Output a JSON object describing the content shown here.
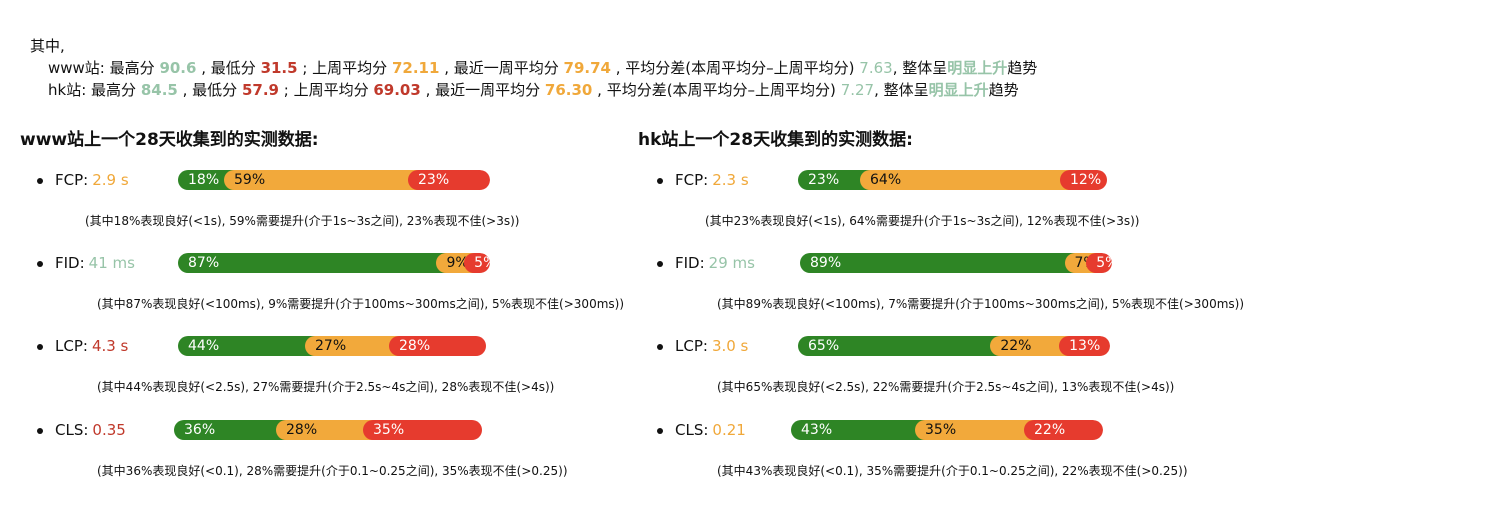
{
  "summary": {
    "intro": "其中,",
    "www": {
      "site": "www站:",
      "max_label": "最高分",
      "max": "90.6",
      "min_label": ", 最低分",
      "min": "31.5",
      "last_label": "; 上周平均分",
      "last": "72.11",
      "recent_label": ", 最近一周平均分",
      "recent": "79.74",
      "diff_label": ", 平均分差(本周平均分–上周平均分)",
      "diff": "7.63",
      "trend_pre": ", 整体呈",
      "trend": "明显上升",
      "trend_post": "趋势"
    },
    "hk": {
      "site": "hk站:",
      "max_label": "最高分",
      "max": "84.5",
      "min_label": ", 最低分",
      "min": "57.9",
      "last_label": "; 上周平均分",
      "last": "69.03",
      "recent_label": ", 最近一周平均分",
      "recent": "76.30",
      "diff_label": ", 平均分差(本周平均分–上周平均分)",
      "diff": "7.27",
      "trend_pre": ", 整体呈",
      "trend": "明显上升",
      "trend_post": "趋势"
    }
  },
  "colors": {
    "good": "#2e8525",
    "mid": "#f2a93b",
    "bad": "#e63b2e",
    "good_text": "#97c4a8",
    "mid_text": "#f0a83a",
    "bad_text": "#c0392b"
  },
  "www": {
    "title": "www站上一个28天收集到的实测数据:",
    "metrics": [
      {
        "name": "FCP:",
        "value": "2.9 s",
        "rating": "mid",
        "good": "18%",
        "mid": "59%",
        "bad": "23%",
        "good_frac": 0.18,
        "mid_frac": 0.59,
        "bad_frac": 0.23,
        "desc": "(其中18%表现良好(<1s), 59%需要提升(介于1s~3s之间), 23%表现不佳(>3s))"
      },
      {
        "name": "FID:",
        "value": "41 ms",
        "rating": "good",
        "good": "87%",
        "mid": "9%",
        "bad": "5%",
        "good_frac": 0.87,
        "mid_frac": 0.09,
        "bad_frac": 0.05,
        "desc": "(其中87%表现良好(<100ms), 9%需要提升(介于100ms~300ms之间), 5%表现不佳(>300ms))"
      },
      {
        "name": "LCP:",
        "value": "4.3 s",
        "rating": "bad",
        "good": "44%",
        "mid": "27%",
        "bad": "28%",
        "good_frac": 0.44,
        "mid_frac": 0.27,
        "bad_frac": 0.28,
        "desc": "(其中44%表现良好(<2.5s), 27%需要提升(介于2.5s~4s之间), 28%表现不佳(>4s))"
      },
      {
        "name": "CLS:",
        "value": "0.35",
        "rating": "bad",
        "good": "36%",
        "mid": "28%",
        "bad": "35%",
        "good_frac": 0.36,
        "mid_frac": 0.28,
        "bad_frac": 0.35,
        "desc": "(其中36%表现良好(<0.1), 28%需要提升(介于0.1~0.25之间), 35%表现不佳(>0.25))"
      }
    ]
  },
  "hk": {
    "title": "hk站上一个28天收集到的实测数据:",
    "metrics": [
      {
        "name": "FCP:",
        "value": "2.3 s",
        "rating": "mid",
        "good": "23%",
        "mid": "64%",
        "bad": "12%",
        "good_frac": 0.23,
        "mid_frac": 0.64,
        "bad_frac": 0.12,
        "desc": "(其中23%表现良好(<1s), 64%需要提升(介于1s~3s之间), 12%表现不佳(>3s))"
      },
      {
        "name": "FID:",
        "value": "29 ms",
        "rating": "good",
        "good": "89%",
        "mid": "7%",
        "bad": "5%",
        "good_frac": 0.89,
        "mid_frac": 0.07,
        "bad_frac": 0.05,
        "desc": "(其中89%表现良好(<100ms), 7%需要提升(介于100ms~300ms之间), 5%表现不佳(>300ms))"
      },
      {
        "name": "LCP:",
        "value": "3.0 s",
        "rating": "mid",
        "good": "65%",
        "mid": "22%",
        "bad": "13%",
        "good_frac": 0.65,
        "mid_frac": 0.22,
        "bad_frac": 0.13,
        "desc": "(其中65%表现良好(<2.5s), 22%需要提升(介于2.5s~4s之间), 13%表现不佳(>4s))"
      },
      {
        "name": "CLS:",
        "value": "0.21",
        "rating": "mid",
        "good": "43%",
        "mid": "35%",
        "bad": "22%",
        "good_frac": 0.43,
        "mid_frac": 0.35,
        "bad_frac": 0.22,
        "desc": "(其中43%表现良好(<0.1), 35%需要提升(介于0.1~0.25之间), 22%表现不佳(>0.25))"
      }
    ]
  }
}
